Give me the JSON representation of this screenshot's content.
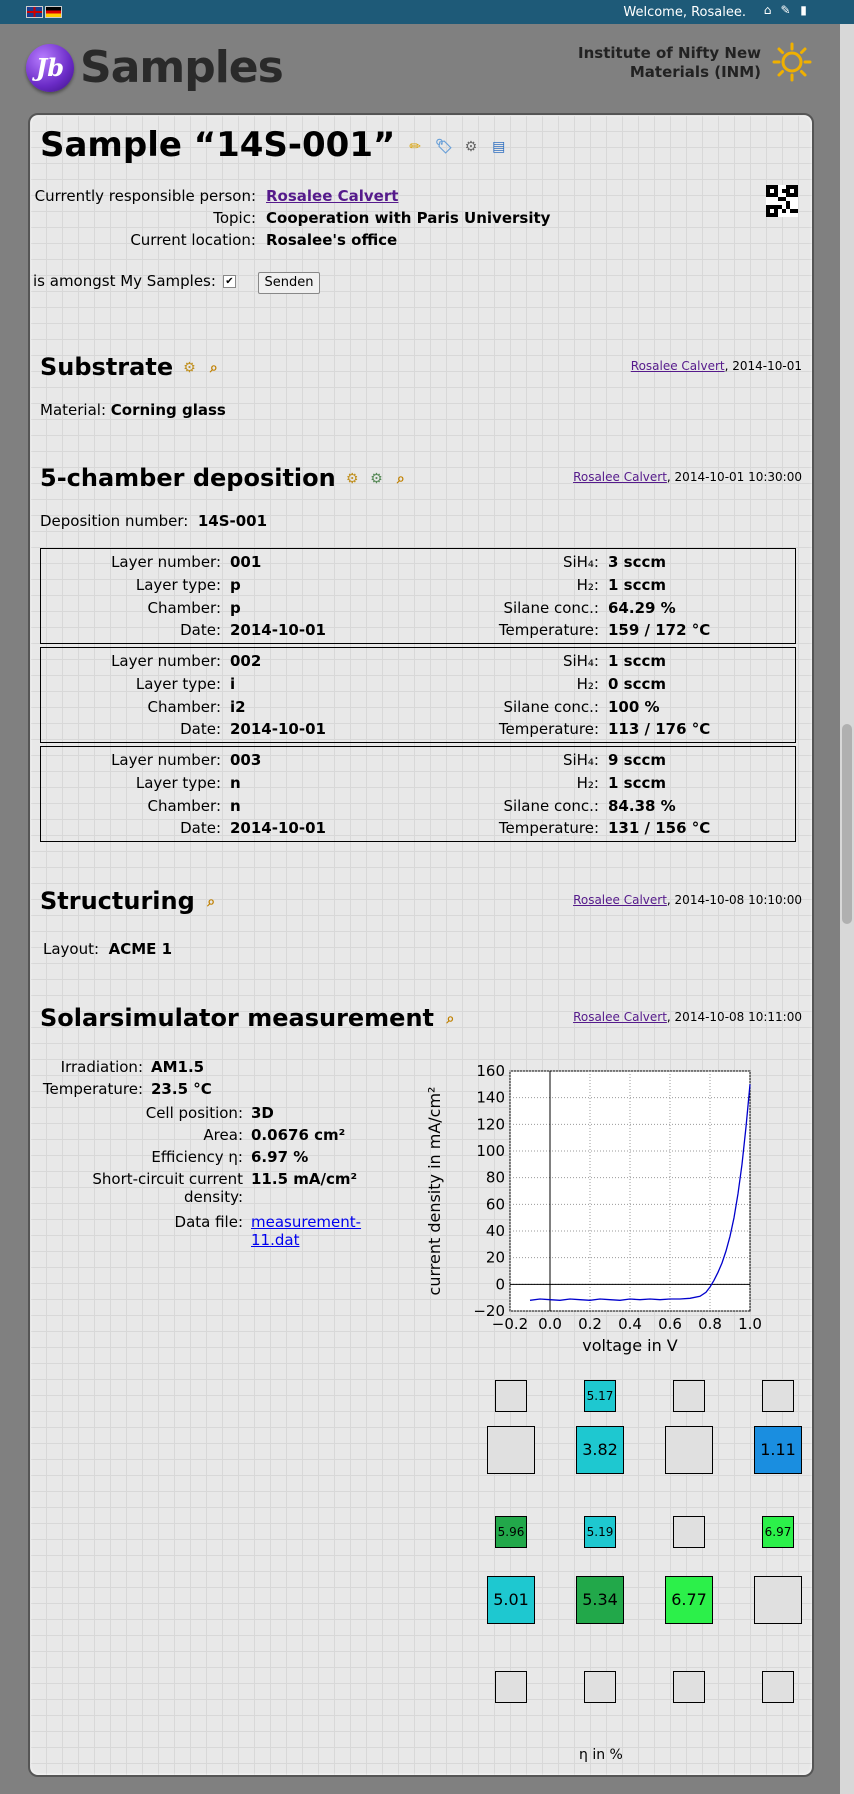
{
  "topbar": {
    "welcome": "Welcome, Rosalee."
  },
  "header": {
    "logo_letters": "Jb",
    "logo_text": "Samples",
    "institute_line1": "Institute of Nifty New",
    "institute_line2": "Materials (INM)"
  },
  "sample": {
    "title": "Sample “14S-001”",
    "responsible_label": "Currently responsible person:",
    "responsible_value": "Rosalee Calvert",
    "topic_label": "Topic:",
    "topic_value": "Cooperation with Paris University",
    "location_label": "Current location:",
    "location_value": "Rosalee's office",
    "my_samples_label": "is amongst My Samples:",
    "my_samples_checked": true,
    "submit_label": "Senden"
  },
  "substrate": {
    "heading": "Substrate",
    "operator": "Rosalee Calvert",
    "date": ", 2014-10-01",
    "material_label": "Material:",
    "material_value": "Corning glass"
  },
  "deposition": {
    "heading": "5-chamber deposition",
    "operator": "Rosalee Calvert",
    "date": ", 2014-10-01 10:30:00",
    "number_label": "Deposition number:",
    "number_value": "14S-001",
    "labels": {
      "layer_number": "Layer number:",
      "layer_type": "Layer type:",
      "chamber": "Chamber:",
      "date": "Date:",
      "sih4": "SiH₄:",
      "h2": "H₂:",
      "silane": "Silane conc.:",
      "temperature": "Temperature:"
    },
    "layers": [
      {
        "number": "001",
        "type": "p",
        "chamber": "p",
        "date": "2014-10-01",
        "sih4": "3 sccm",
        "h2": "1 sccm",
        "silane": "64.29 %",
        "temperature": "159 / 172 °C"
      },
      {
        "number": "002",
        "type": "i",
        "chamber": "i2",
        "date": "2014-10-01",
        "sih4": "1 sccm",
        "h2": "0 sccm",
        "silane": "100 %",
        "temperature": "113 / 176 °C"
      },
      {
        "number": "003",
        "type": "n",
        "chamber": "n",
        "date": "2014-10-01",
        "sih4": "9 sccm",
        "h2": "1 sccm",
        "silane": "84.38 %",
        "temperature": "131 / 156 °C"
      }
    ]
  },
  "structuring": {
    "heading": "Structuring",
    "operator": "Rosalee Calvert",
    "date": ", 2014-10-08 10:10:00",
    "layout_label": "Layout:",
    "layout_value": "ACME 1"
  },
  "solarsim": {
    "heading": "Solarsimulator measurement",
    "operator": "Rosalee Calvert",
    "date": ", 2014-10-08 10:11:00",
    "irradiation_label": "Irradiation:",
    "irradiation_value": "AM1.5",
    "temperature_label": "Temperature:",
    "temperature_value": "23.5 °C",
    "position_label": "Cell position:",
    "position_value": "3D",
    "area_label": "Area:",
    "area_value": "0.0676 cm²",
    "efficiency_label": "Efficiency η:",
    "efficiency_value": "6.97 %",
    "jsc_label_1": "Short-circuit current",
    "jsc_label_2": "density:",
    "jsc_value": "11.5 mA/cm²",
    "datafile_label": "Data file:",
    "datafile_line1": "measurement-",
    "datafile_line2": "11.dat",
    "map_label": "η in %",
    "cell_map": [
      [
        {
          "v": "",
          "size": "s"
        },
        {
          "v": "5.17",
          "size": "s",
          "color": "#1ec8d0"
        },
        {
          "v": "",
          "size": "s"
        },
        {
          "v": "",
          "size": "s"
        }
      ],
      [
        {
          "v": "",
          "size": "l"
        },
        {
          "v": "3.82",
          "size": "l",
          "color": "#1ec8d0"
        },
        {
          "v": "",
          "size": "l"
        },
        {
          "v": "1.11",
          "size": "l",
          "color": "#1a8ee0"
        }
      ],
      [
        {
          "v": "5.96",
          "size": "s",
          "color": "#22a84a"
        },
        {
          "v": "5.19",
          "size": "s",
          "color": "#1ec8d0"
        },
        {
          "v": "",
          "size": "s"
        },
        {
          "v": "6.97",
          "size": "s",
          "color": "#2cf04a"
        }
      ],
      [
        {
          "v": "5.01",
          "size": "l",
          "color": "#1ec8d0"
        },
        {
          "v": "5.34",
          "size": "l",
          "color": "#22a84a"
        },
        {
          "v": "6.77",
          "size": "l",
          "color": "#2cf04a"
        },
        {
          "v": "",
          "size": "l"
        }
      ],
      [
        {
          "v": "",
          "size": "s"
        },
        {
          "v": "",
          "size": "s"
        },
        {
          "v": "",
          "size": "s"
        },
        {
          "v": "",
          "size": "s"
        }
      ]
    ]
  },
  "chart_data": {
    "type": "line",
    "title": "",
    "xlabel": "voltage in V",
    "ylabel": "current density in mA/cm²",
    "xlim": [
      -0.2,
      1.0
    ],
    "ylim": [
      -20,
      160
    ],
    "xticks": [
      "−0.2",
      "0.0",
      "0.2",
      "0.4",
      "0.6",
      "0.8",
      "1.0"
    ],
    "yticks": [
      "−20",
      "0",
      "20",
      "40",
      "60",
      "80",
      "100",
      "120",
      "140",
      "160"
    ],
    "grid": true,
    "series": [
      {
        "color": "#0000cc",
        "x": [
          -0.1,
          -0.05,
          0.0,
          0.05,
          0.1,
          0.15,
          0.2,
          0.25,
          0.3,
          0.35,
          0.4,
          0.45,
          0.5,
          0.55,
          0.6,
          0.65,
          0.7,
          0.75,
          0.78,
          0.8,
          0.82,
          0.84,
          0.86,
          0.88,
          0.9,
          0.92,
          0.94,
          0.96,
          0.98,
          1.0
        ],
        "y": [
          -12,
          -11,
          -11.5,
          -12,
          -11,
          -11.5,
          -12,
          -11,
          -11.5,
          -12,
          -11,
          -11.5,
          -11,
          -11.5,
          -11,
          -11,
          -10.5,
          -9,
          -6,
          -2,
          3,
          9,
          16,
          25,
          36,
          50,
          68,
          90,
          118,
          150
        ]
      }
    ]
  }
}
